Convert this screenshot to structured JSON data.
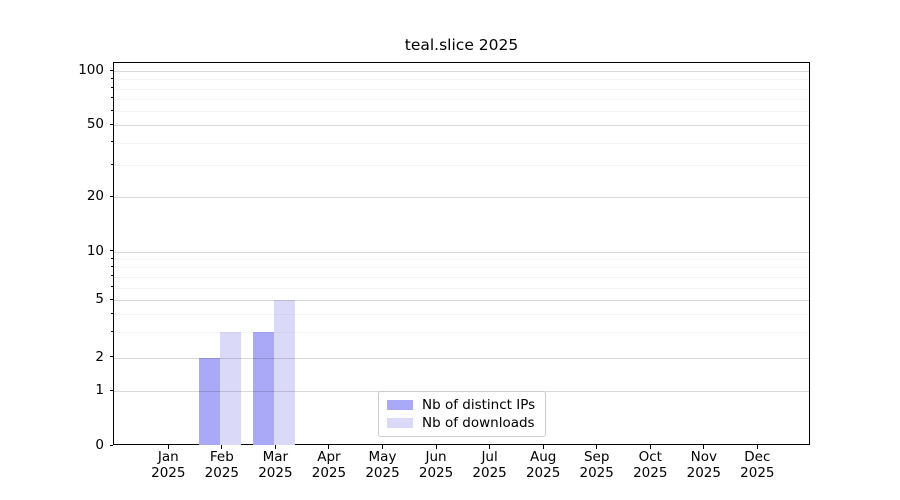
{
  "chart_data": {
    "type": "bar",
    "title": "teal.slice 2025",
    "categories": [
      "Jan",
      "Feb",
      "Mar",
      "Apr",
      "May",
      "Jun",
      "Jul",
      "Aug",
      "Sep",
      "Oct",
      "Nov",
      "Dec"
    ],
    "x_tick_year": "2025",
    "series": [
      {
        "name": "Nb of distinct IPs",
        "color": "#a9a9f7",
        "values": [
          0,
          2,
          3,
          0,
          0,
          0,
          0,
          0,
          0,
          0,
          0,
          0
        ]
      },
      {
        "name": "Nb of downloads",
        "color": "#dadaf8",
        "values": [
          0,
          3,
          5,
          0,
          0,
          0,
          0,
          0,
          0,
          0,
          0,
          0
        ]
      }
    ],
    "y_axis": {
      "scale": "log-like with 0 baseline",
      "ylim": [
        0,
        100
      ],
      "major_ticks": [
        0,
        1,
        2,
        5,
        10,
        20,
        50,
        100
      ],
      "minor_ticks": [
        3,
        4,
        6,
        7,
        8,
        9,
        30,
        40,
        60,
        70,
        80,
        90
      ]
    },
    "legend": {
      "position": "bottom-center",
      "entries": [
        "Nb of distinct IPs",
        "Nb of downloads"
      ]
    },
    "grid": "horizontal major+minor"
  },
  "colors": {
    "background": "#ffffff",
    "bar_distinct_ips": "#a9a9f7",
    "bar_downloads": "#dadaf8",
    "grid_major": "rgba(0,0,0,0.15)",
    "grid_minor": "rgba(0,0,0,0.045)",
    "axis_spine": "#000000",
    "legend_border": "#cccccc"
  }
}
